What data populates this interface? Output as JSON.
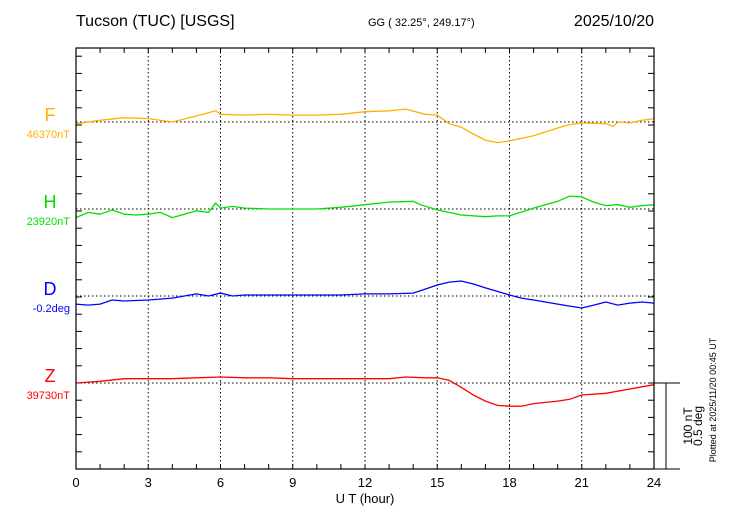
{
  "header": {
    "station": "Tucson (TUC)  [USGS]",
    "coords": "GG ( 32.25°, 249.17°)",
    "date": "2025/10/20"
  },
  "footer": {
    "plotted_at": "Plotted at 2025/11/20 00:45 UT",
    "scale_nt": "100 nT",
    "scale_deg": "0.5 deg"
  },
  "chart_data": {
    "type": "line",
    "xlabel": "U T (hour)",
    "xlim": [
      0,
      24
    ],
    "xticks": [
      "0",
      "3",
      "6",
      "9",
      "12",
      "15",
      "18",
      "21",
      "24"
    ],
    "grid": "dotted vertical every 3 h, dotted baseline per series",
    "scale": {
      "nT": 100,
      "deg": 0.5
    },
    "series": [
      {
        "name": "F",
        "baseline_label": "46370nT",
        "baseline": 46370,
        "unit": "nT",
        "color": "#ffb000",
        "x": [
          0,
          1,
          2,
          3,
          4,
          5,
          5.8,
          6,
          7,
          8,
          9,
          10,
          11,
          12,
          13,
          13.7,
          14.5,
          15,
          15.5,
          16,
          16.5,
          17,
          17.5,
          18,
          19,
          20,
          20.5,
          21,
          22,
          22.3,
          22.5,
          23,
          23.5,
          24
        ],
        "y": [
          46368,
          46372,
          46375,
          46374,
          46370,
          46377,
          46383,
          46379,
          46378,
          46379,
          46378,
          46378,
          46379,
          46382,
          46383,
          46385,
          46379,
          46378,
          46368,
          46364,
          46356,
          46349,
          46346,
          46348,
          46354,
          46363,
          46367,
          46369,
          46368,
          46365,
          46370,
          46369,
          46372,
          46374
        ]
      },
      {
        "name": "H",
        "baseline_label": "23920nT",
        "baseline": 23920,
        "unit": "nT",
        "color": "#00e000",
        "x": [
          0,
          0.5,
          1,
          1.5,
          2,
          2.5,
          3,
          3.5,
          4,
          4.5,
          5,
          5.5,
          5.8,
          6,
          6.5,
          7,
          8,
          9,
          10,
          11,
          12,
          13,
          14,
          14.3,
          15,
          16,
          17,
          17.5,
          18,
          19,
          20,
          20.5,
          21,
          21.5,
          22,
          22.5,
          23,
          23.5,
          24
        ],
        "y": [
          23910,
          23916,
          23914,
          23919,
          23914,
          23913,
          23914,
          23916,
          23910,
          23914,
          23918,
          23916,
          23927,
          23921,
          23923,
          23921,
          23920,
          23920,
          23920,
          23922,
          23925,
          23928,
          23929,
          23925,
          23919,
          23913,
          23911,
          23912,
          23912,
          23921,
          23929,
          23935,
          23934,
          23928,
          23924,
          23925,
          23922,
          23924,
          23925
        ]
      },
      {
        "name": "D",
        "baseline_label": "-0.2deg",
        "baseline": -0.2,
        "unit": "deg",
        "color": "#0000ff",
        "x": [
          0,
          0.5,
          1,
          1.5,
          2,
          3,
          4,
          5,
          5.5,
          6,
          6.5,
          7,
          8,
          9,
          10,
          11,
          12,
          13,
          14,
          14.5,
          15,
          15.5,
          16,
          16.5,
          17,
          18,
          18.5,
          19,
          20,
          20.5,
          21,
          21.5,
          22,
          22.5,
          23,
          23.5,
          24
        ],
        "y": [
          -0.247,
          -0.253,
          -0.247,
          -0.223,
          -0.229,
          -0.223,
          -0.212,
          -0.188,
          -0.2,
          -0.183,
          -0.2,
          -0.194,
          -0.194,
          -0.194,
          -0.194,
          -0.194,
          -0.188,
          -0.188,
          -0.183,
          -0.16,
          -0.136,
          -0.119,
          -0.113,
          -0.13,
          -0.153,
          -0.194,
          -0.212,
          -0.223,
          -0.247,
          -0.259,
          -0.27,
          -0.253,
          -0.235,
          -0.253,
          -0.241,
          -0.235,
          -0.241
        ]
      },
      {
        "name": "Z",
        "baseline_label": "39730nT",
        "baseline": 39730,
        "unit": "nT",
        "color": "#ff0000",
        "x": [
          0,
          1,
          2,
          3,
          4,
          5,
          6,
          7,
          8,
          9,
          10,
          11,
          12,
          13,
          13.7,
          14.5,
          15,
          15.5,
          16,
          16.5,
          17,
          17.5,
          18,
          18.5,
          19,
          20,
          20.5,
          21,
          22,
          23,
          24
        ],
        "y": [
          39730,
          39732,
          39735,
          39735,
          39735,
          39736,
          39737,
          39736,
          39736,
          39735,
          39735,
          39735,
          39735,
          39735,
          39737,
          39736,
          39736,
          39733,
          39725,
          39716,
          39709,
          39704,
          39703,
          39703,
          39706,
          39709,
          39711,
          39716,
          39718,
          39723,
          39728
        ]
      }
    ]
  }
}
